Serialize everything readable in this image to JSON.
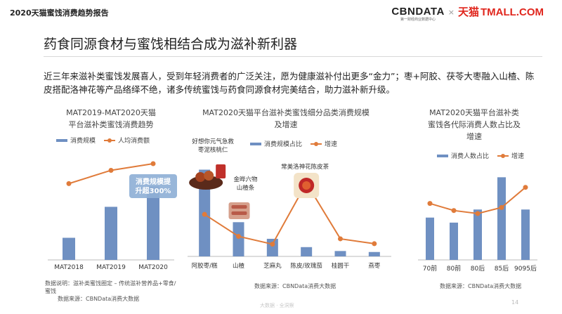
{
  "header": {
    "report_title": "2020天猫蜜饯消费趋势报告",
    "brand_cbn": "CBNDATA",
    "brand_cbn_sub": "第一财经商业数据中心",
    "brand_x": "×",
    "brand_tmall_cn": "天猫",
    "brand_tmall_en": "TMALL.COM"
  },
  "slide": {
    "title": "药食同源食材与蜜饯相结合成为滋补新利器",
    "intro": "近三年来滋补类蜜饯发展喜人，受到年轻消费者的广泛关注，愿为健康滋补付出更多“金力”；枣+阿胶、茯苓大枣融入山楂、陈皮搭配洛神花等产品络绎不绝，诸多传统蜜饯与药食同源食材完美结合，助力滋补新升级。"
  },
  "colors": {
    "bar": "#6f90c2",
    "line": "#e07b3a",
    "callout": "#8fb0d6",
    "axis": "#bbbbbb"
  },
  "chart_data": [
    {
      "type": "bar",
      "title_lines": [
        "MAT2019-MAT2020天猫",
        "平台滋补类蜜饯消费趋势"
      ],
      "legend": {
        "bar": "消费规模",
        "line": "人均消费额"
      },
      "categories": [
        "MAT2018",
        "MAT2019",
        "MAT2020"
      ],
      "series": [
        {
          "name": "消费规模",
          "kind": "bar",
          "values": [
            1.0,
            2.4,
            3.33
          ]
        },
        {
          "name": "人均消费额",
          "kind": "line",
          "values": [
            3.45,
            4.05,
            4.35
          ]
        }
      ],
      "ylim": [
        0,
        4.7
      ],
      "callout": "消费规模提升超300%",
      "callout_lines": [
        "消费规模提",
        "升超300%"
      ]
    },
    {
      "type": "bar",
      "title_lines": [
        "MAT2020天猫平台滋补类蜜饯细分品类消费规模",
        "及增速"
      ],
      "legend": {
        "bar": "消费规模占比",
        "line": "增速"
      },
      "categories": [
        "阿胶枣/糕",
        "山楂",
        "芝麻丸",
        "陈皮/玫瑰茄",
        "桂圆干",
        "燕枣"
      ],
      "series": [
        {
          "name": "消费规模占比",
          "kind": "bar",
          "values": [
            3.55,
            1.4,
            0.72,
            0.38,
            0.22,
            0.18
          ]
        },
        {
          "name": "增速",
          "kind": "line",
          "values": [
            1.72,
            0.82,
            0.5,
            3.0,
            0.72,
            0.52
          ]
        }
      ],
      "ylim": [
        0,
        4.6
      ],
      "product_labels": [
        {
          "category": "阿胶枣/糕",
          "lines": [
            "好想你元气急救",
            "枣泥核桃仁"
          ]
        },
        {
          "category": "山楂",
          "lines": [
            "金晔六物",
            "山楂条"
          ]
        },
        {
          "category": "陈皮/玫瑰茄",
          "lines": [
            "常美洛神花陈皮茶"
          ]
        }
      ]
    },
    {
      "type": "bar",
      "title_lines": [
        "MAT2020天猫平台滋补类",
        "蜜饯各代际消费人数占比及",
        "增速"
      ],
      "legend": {
        "bar": "消费人数占比",
        "line": "增速"
      },
      "categories": [
        "70前",
        "80前",
        "80后",
        "85后",
        "9095后"
      ],
      "series": [
        {
          "name": "消费人数占比",
          "kind": "bar",
          "values": [
            2.1,
            1.85,
            2.5,
            4.1,
            2.5
          ]
        },
        {
          "name": "增速",
          "kind": "line",
          "values": [
            2.8,
            2.45,
            2.3,
            2.6,
            3.6
          ]
        }
      ],
      "ylim": [
        0,
        4.6
      ]
    }
  ],
  "notes": {
    "chart1": "数据说明：滋补类蜜饯圈定 – 传统滋补营养品+零食/蜜饯",
    "chart1_source": "数据来源：CBNData消费大数据",
    "chart2_source": "数据来源：CBNData消费大数据",
    "chart3_source": "数据来源：CBNData消费大数据"
  },
  "footer": {
    "watermark": "大数据 · 全洞察",
    "page_number": "14"
  }
}
